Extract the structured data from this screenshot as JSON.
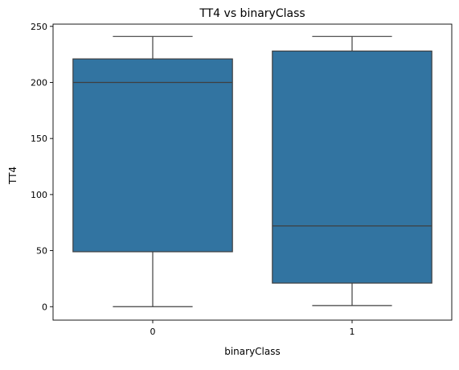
{
  "chart_data": {
    "type": "box",
    "title": "TT4 vs binaryClass",
    "xlabel": "binaryClass",
    "ylabel": "TT4",
    "categories": [
      "0",
      "1"
    ],
    "ylim": [
      -12,
      252
    ],
    "yticks": [
      0,
      50,
      100,
      150,
      200,
      250
    ],
    "grid": false,
    "legend": "none",
    "box_color": "#3274a1",
    "line_color": "#3f3f3f",
    "boxes": [
      {
        "category": "0",
        "whisker_low": 0,
        "q1": 49,
        "median": 200,
        "q3": 221,
        "whisker_high": 241
      },
      {
        "category": "1",
        "whisker_low": 1,
        "q1": 21,
        "median": 72,
        "q3": 228,
        "whisker_high": 241
      }
    ]
  }
}
